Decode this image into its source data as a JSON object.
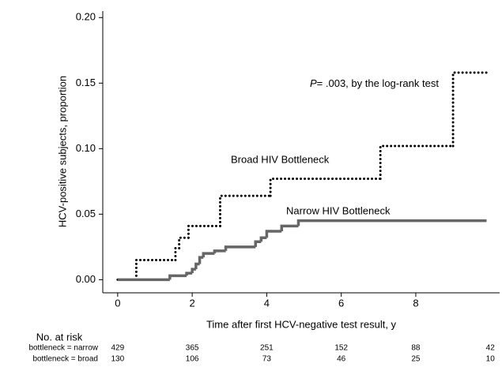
{
  "chart_data": {
    "type": "step",
    "y_label": "HCV-positive subjects, proportion",
    "x_label": "Time after first HCV-negative test result, y",
    "annotation": [
      "P",
      "= .003, by the log-rank test"
    ],
    "xlim": [
      -0.4,
      10.25
    ],
    "ylim": [
      -0.01,
      0.205
    ],
    "xticks": [
      0,
      2,
      4,
      6,
      8
    ],
    "yticks": [
      {
        "value": 0,
        "label": "0.00"
      },
      {
        "value": 0.05,
        "label": "0.05"
      },
      {
        "value": 0.1,
        "label": "0.10"
      },
      {
        "value": 0.15,
        "label": "0.15"
      },
      {
        "value": 0.2,
        "label": "0.20"
      }
    ],
    "series": [
      {
        "name": "Broad HIV Bottleneck",
        "color": "#000000",
        "style": "dotted",
        "x": [
          0,
          0.5,
          1.55,
          1.65,
          1.9,
          2.75,
          4.1,
          7.05,
          9.0,
          9.9
        ],
        "values": [
          0,
          0.015,
          0.024,
          0.032,
          0.041,
          0.064,
          0.077,
          0.102,
          0.158,
          0.158
        ]
      },
      {
        "name": "Narrow HIV Bottleneck",
        "color": "#666666",
        "style": "solid",
        "x": [
          0,
          1.4,
          1.85,
          2.0,
          2.1,
          2.2,
          2.3,
          2.6,
          2.9,
          3.7,
          3.85,
          4.0,
          4.4,
          4.85,
          9.9
        ],
        "values": [
          0,
          0.003,
          0.005,
          0.008,
          0.012,
          0.017,
          0.02,
          0.022,
          0.025,
          0.029,
          0.032,
          0.037,
          0.041,
          0.045,
          0.045
        ]
      }
    ],
    "risk_table": {
      "title": "No. at risk",
      "rows": [
        {
          "label": "bottleneck = narrow",
          "values": [
            429,
            365,
            251,
            152,
            88,
            42
          ]
        },
        {
          "label": "bottleneck = broad",
          "values": [
            130,
            106,
            73,
            46,
            25,
            10
          ]
        }
      ]
    }
  }
}
